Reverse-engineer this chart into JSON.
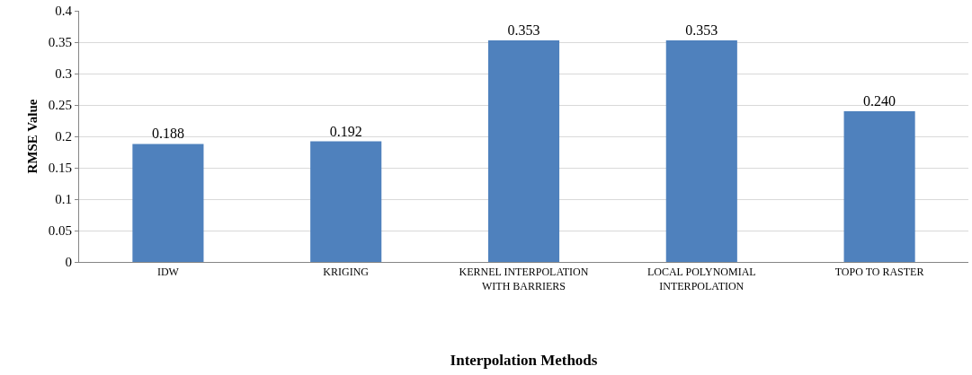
{
  "chart_data": {
    "type": "bar",
    "xlabel": "Interpolation Methods",
    "ylabel": "RMSE Value",
    "categories": [
      "IDW",
      "KRIGING",
      "KERNEL INTERPOLATION\nWITH BARRIERS",
      "LOCAL POLYNOMIAL\nINTERPOLATION",
      "TOPO TO RASTER"
    ],
    "values": [
      0.188,
      0.192,
      0.353,
      0.353,
      0.24
    ],
    "value_labels": [
      "0.188",
      "0.192",
      "0.353",
      "0.353",
      "0.240"
    ],
    "color": "#4f81bd",
    "ylim": [
      0,
      0.4
    ],
    "yticks": [
      0,
      0.05,
      0.1,
      0.15,
      0.2,
      0.25,
      0.3,
      0.35,
      0.4
    ],
    "grid": "y"
  }
}
